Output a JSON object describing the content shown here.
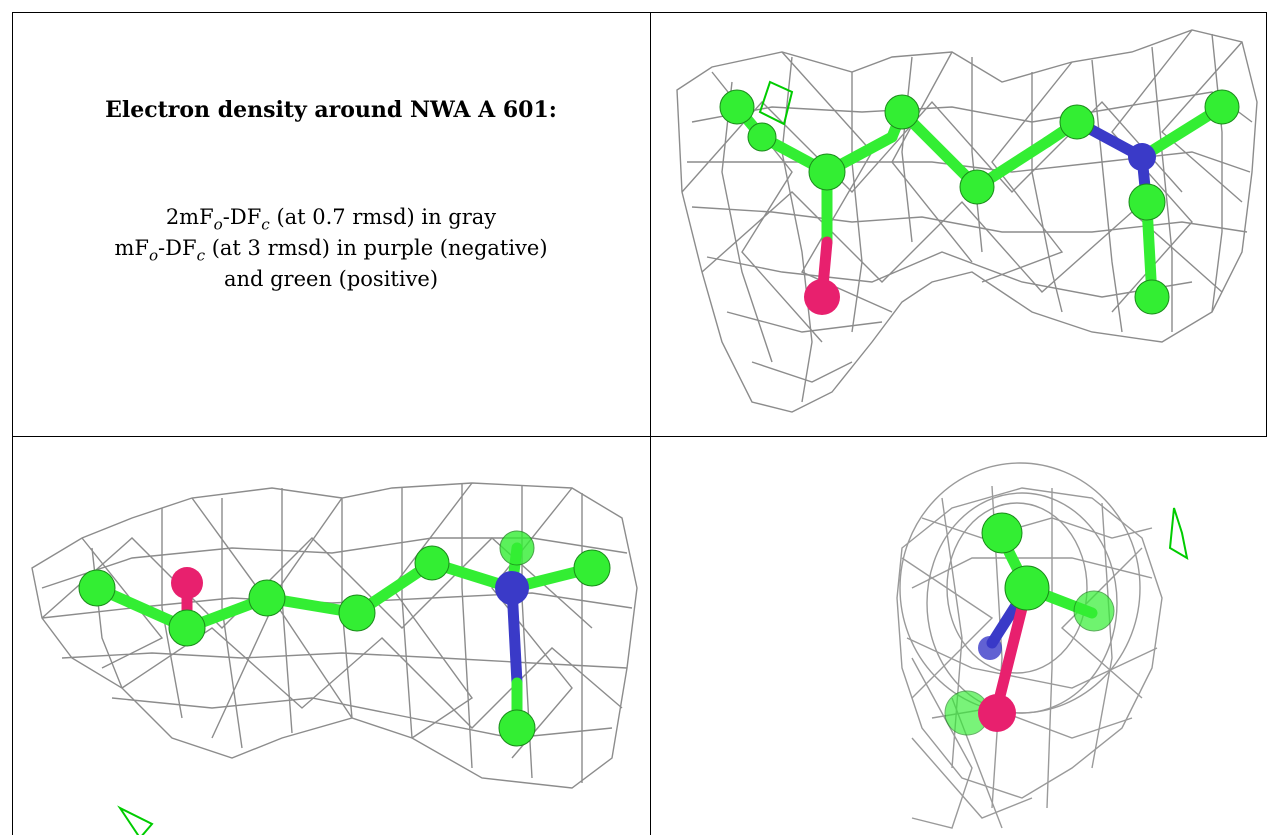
{
  "caption": {
    "title": "Electron density around NWA A 601:",
    "line1": {
      "a": "2mF",
      "o": "o",
      "b": "-DF",
      "c": "c",
      "rest": " (at 0.7 rmsd) in gray"
    },
    "line2": {
      "a": "mF",
      "o": "o",
      "b": "-DF",
      "c": "c",
      "rest": " (at 3 rmsd) in purple (negative)"
    },
    "line3": "and green (positive)"
  },
  "colors": {
    "mesh_gray": "#8a8a8a",
    "carbon_green": "#33ee33",
    "nitrogen_blue": "#3a3ac8",
    "oxygen_red": "#e8206e",
    "difference_green": "#00cc00",
    "border": "#000000"
  },
  "views": [
    {
      "name": "top-right",
      "atoms": [
        "C",
        "C",
        "C",
        "C",
        "C",
        "C",
        "N",
        "C",
        "C",
        "C",
        "O"
      ]
    },
    {
      "name": "bottom-left",
      "atoms": [
        "C",
        "O",
        "C",
        "C",
        "C",
        "C",
        "N",
        "C",
        "C",
        "C"
      ]
    },
    {
      "name": "bottom-right",
      "atoms": [
        "C",
        "C",
        "N",
        "O",
        "C"
      ]
    }
  ]
}
